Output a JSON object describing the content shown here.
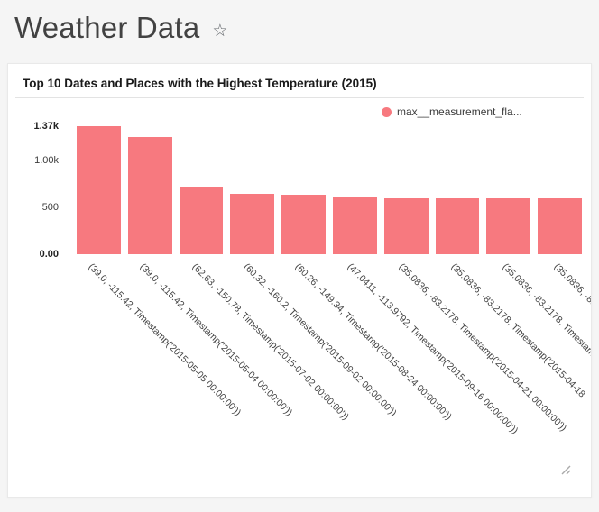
{
  "header": {
    "title": "Weather Data",
    "favorite_icon": "☆"
  },
  "chart": {
    "title": "Top 10 Dates and Places with the Highest Temperature (2015)",
    "legend_label": "max__measurement_fla..."
  },
  "colors": {
    "bar": "#F7797F",
    "page_background": "#F5F5F5",
    "card_background": "#FFFFFF"
  },
  "chart_data": {
    "type": "bar",
    "title": "Top 10 Dates and Places with the Highest Temperature (2015)",
    "legend": [
      "max__measurement_fla..."
    ],
    "legend_position": "top-right",
    "grid": false,
    "ylim": [
      0,
      1370
    ],
    "yticks": [
      {
        "label": "0.00",
        "value": 0,
        "bold": true
      },
      {
        "label": "500",
        "value": 500,
        "bold": false
      },
      {
        "label": "1.00k",
        "value": 1000,
        "bold": false
      },
      {
        "label": "1.37k",
        "value": 1370,
        "bold": true
      }
    ],
    "categories": [
      "(39.0, -115.42, Timestamp('2015-05-05 00:00:00'))",
      "(39.0, -115.42, Timestamp('2015-05-04 00:00:00'))",
      "(62.63, -150.78, Timestamp('2015-07-02 00:00:00'))",
      "(60.32, -160.2, Timestamp('2015-09-02 00:00:00'))",
      "(60.26, -149.34, Timestamp('2015-08-24 00:00:00'))",
      "(47.0411, -113.9792, Timestamp('2015-09-16 00:00:00'))",
      "(35.0836, -83.2178, Timestamp('2015-04-21 00:00:00'))",
      "(35.0836, -83.2178, Timestamp('2015-04-18",
      "(35.0836, -83.2178, Timestam",
      "(35.0836, -83.2"
    ],
    "values": [
      1370,
      1250,
      720,
      648,
      640,
      604,
      602,
      601,
      600,
      599
    ]
  }
}
